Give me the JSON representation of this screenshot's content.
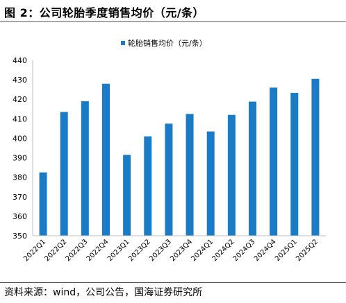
{
  "figure": {
    "title": "图 2：公司轮胎季度销售均价（元/条）",
    "source": "资料来源：wind，公司公告，国海证券研究所"
  },
  "colors": {
    "bar": "#1a7cc6",
    "axis": "#bfbfbf",
    "text": "#000000"
  },
  "chart_data": {
    "type": "bar",
    "categories": [
      "2022Q1",
      "2022Q2",
      "2022Q3",
      "2022Q4",
      "2023Q1",
      "2023Q2",
      "2023Q3",
      "2023Q4",
      "2024Q1",
      "2024Q2",
      "2024Q3",
      "2024Q4",
      "2025Q1",
      "2025Q2"
    ],
    "series": [
      {
        "name": "轮胎销售均价（元/条）",
        "values": [
          382.5,
          413.5,
          419,
          428,
          391.5,
          401,
          407.5,
          412.5,
          403.5,
          412,
          418.8,
          426,
          423.3,
          430.5
        ]
      }
    ],
    "ylim": [
      350,
      440
    ],
    "yticks": [
      350,
      360,
      370,
      380,
      390,
      400,
      410,
      420,
      430,
      440
    ],
    "legend_position": "top-center",
    "grid": false
  }
}
